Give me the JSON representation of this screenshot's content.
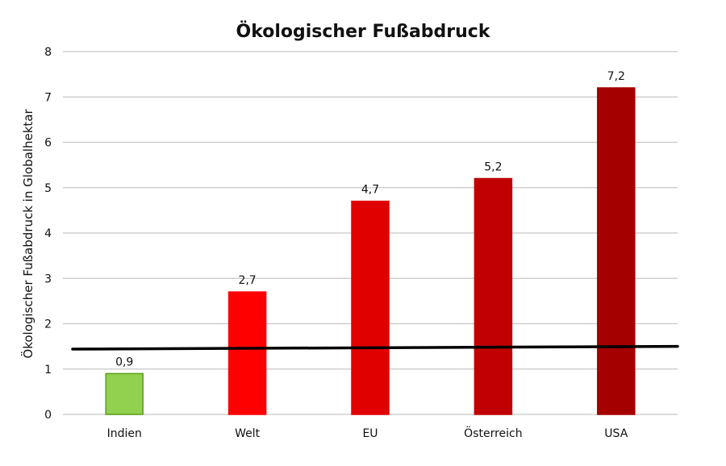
{
  "chart_data": {
    "type": "bar",
    "title": "Ökologischer Fußabdruck",
    "xlabel": "",
    "ylabel": "Ökologischer Fußabdruck in Globalhektar",
    "ylim": [
      0,
      8
    ],
    "yticks": [
      "0",
      "1",
      "2",
      "3",
      "4",
      "5",
      "6",
      "7",
      "8"
    ],
    "categories": [
      "Indien",
      "Welt",
      "EU",
      "Österreich",
      "USA"
    ],
    "values": [
      0.9,
      2.7,
      4.7,
      5.2,
      7.2
    ],
    "data_labels": [
      "0,9",
      "2,7",
      "4,7",
      "5,2",
      "7,2"
    ],
    "bar_colors": [
      "#92d050",
      "#ff0000",
      "#e00000",
      "#c00000",
      "#a50000"
    ],
    "bar_outline_colors": [
      "#5a9e1a",
      "#ff0000",
      "#e00000",
      "#c00000",
      "#a50000"
    ],
    "reference_line": {
      "start_value": 1.44,
      "end_value": 1.5,
      "color": "#000000"
    },
    "grid": true,
    "legend": "none"
  }
}
